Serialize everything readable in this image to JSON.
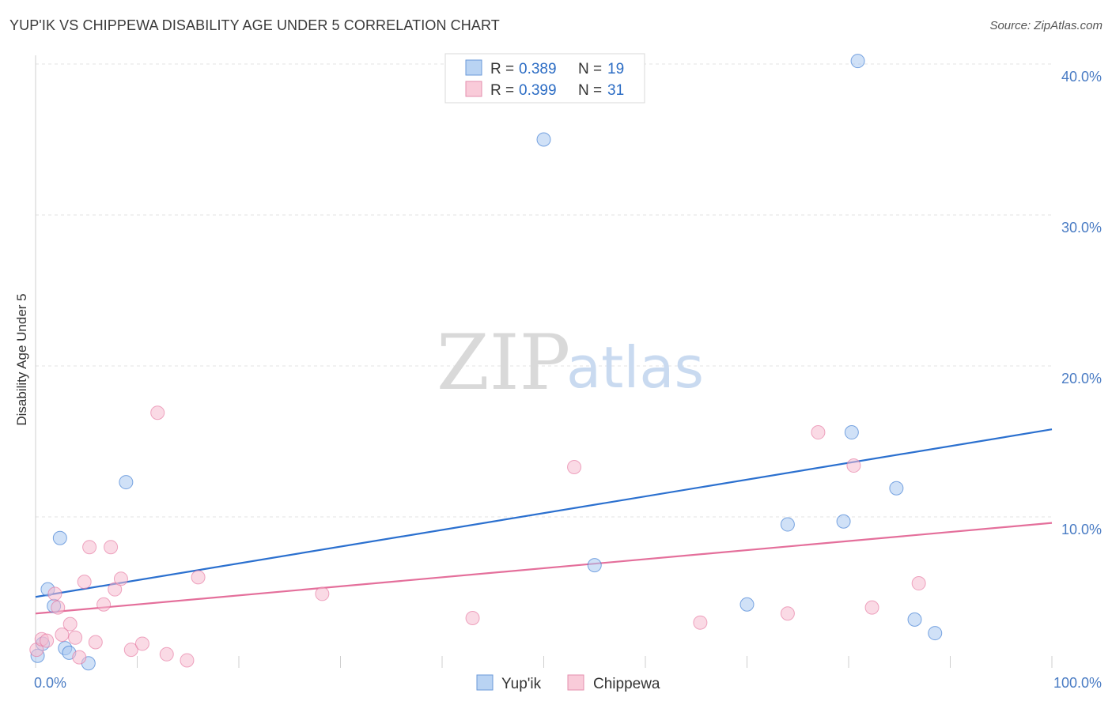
{
  "header": {
    "title": "YUP'IK VS CHIPPEWA DISABILITY AGE UNDER 5 CORRELATION CHART",
    "source": "Source: ZipAtlas.com"
  },
  "watermark": {
    "zip": "ZIP",
    "atlas": "atlas"
  },
  "legend_top": [
    {
      "r_label": "R = ",
      "r_value": "0.389",
      "n_label": "N = ",
      "n_value": "19"
    },
    {
      "r_label": "R = ",
      "r_value": "0.399",
      "n_label": "N = ",
      "n_value": "31"
    }
  ],
  "chart_data": {
    "type": "scatter",
    "title": "YUP'IK VS CHIPPEWA DISABILITY AGE UNDER 5 CORRELATION CHART",
    "xlabel": "",
    "ylabel": "Disability Age Under 5",
    "xlim": [
      0,
      100
    ],
    "ylim": [
      0,
      42
    ],
    "x_tick_labels": [
      "0.0%",
      "100.0%"
    ],
    "y_ticks": [
      10,
      20,
      30,
      40
    ],
    "y_tick_labels": [
      "10.0%",
      "20.0%",
      "30.0%",
      "40.0%"
    ],
    "grid": true,
    "legend_position": "top-center",
    "series": [
      {
        "name": "Yup'ik",
        "color": "#a9c8f0",
        "line_color": "#2b70cf",
        "r": 0.389,
        "n": 19,
        "trend": [
          [
            0,
            4.7
          ],
          [
            100,
            15.8
          ]
        ],
        "points": [
          [
            0.2,
            0.8
          ],
          [
            0.7,
            1.6
          ],
          [
            1.2,
            5.2
          ],
          [
            1.8,
            4.1
          ],
          [
            2.4,
            8.6
          ],
          [
            2.9,
            1.3
          ],
          [
            3.3,
            1.0
          ],
          [
            5.2,
            0.3
          ],
          [
            8.9,
            12.3
          ],
          [
            50.0,
            35.0
          ],
          [
            55.0,
            6.8
          ],
          [
            70.0,
            4.2
          ],
          [
            74.0,
            9.5
          ],
          [
            79.5,
            9.7
          ],
          [
            80.3,
            15.6
          ],
          [
            80.9,
            40.2
          ],
          [
            84.7,
            11.9
          ],
          [
            86.5,
            3.2
          ],
          [
            88.5,
            2.3
          ]
        ]
      },
      {
        "name": "Chippewa",
        "color": "#f5bccf",
        "line_color": "#e46f9b",
        "r": 0.399,
        "n": 31,
        "trend": [
          [
            0,
            3.6
          ],
          [
            100,
            9.6
          ]
        ],
        "points": [
          [
            0.1,
            1.2
          ],
          [
            0.6,
            1.9
          ],
          [
            1.1,
            1.8
          ],
          [
            1.9,
            4.9
          ],
          [
            2.2,
            4.0
          ],
          [
            2.6,
            2.2
          ],
          [
            3.4,
            2.9
          ],
          [
            3.9,
            2.0
          ],
          [
            4.3,
            0.7
          ],
          [
            4.8,
            5.7
          ],
          [
            5.3,
            8.0
          ],
          [
            5.9,
            1.7
          ],
          [
            6.7,
            4.2
          ],
          [
            7.4,
            8.0
          ],
          [
            7.8,
            5.2
          ],
          [
            8.4,
            5.9
          ],
          [
            9.4,
            1.2
          ],
          [
            10.5,
            1.6
          ],
          [
            12.0,
            16.9
          ],
          [
            12.9,
            0.9
          ],
          [
            14.9,
            0.5
          ],
          [
            16.0,
            6.0
          ],
          [
            28.2,
            4.9
          ],
          [
            43.0,
            3.3
          ],
          [
            53.0,
            13.3
          ],
          [
            65.4,
            3.0
          ],
          [
            74.0,
            3.6
          ],
          [
            77.0,
            15.6
          ],
          [
            80.5,
            13.4
          ],
          [
            82.3,
            4.0
          ],
          [
            86.9,
            5.6
          ]
        ]
      }
    ]
  }
}
